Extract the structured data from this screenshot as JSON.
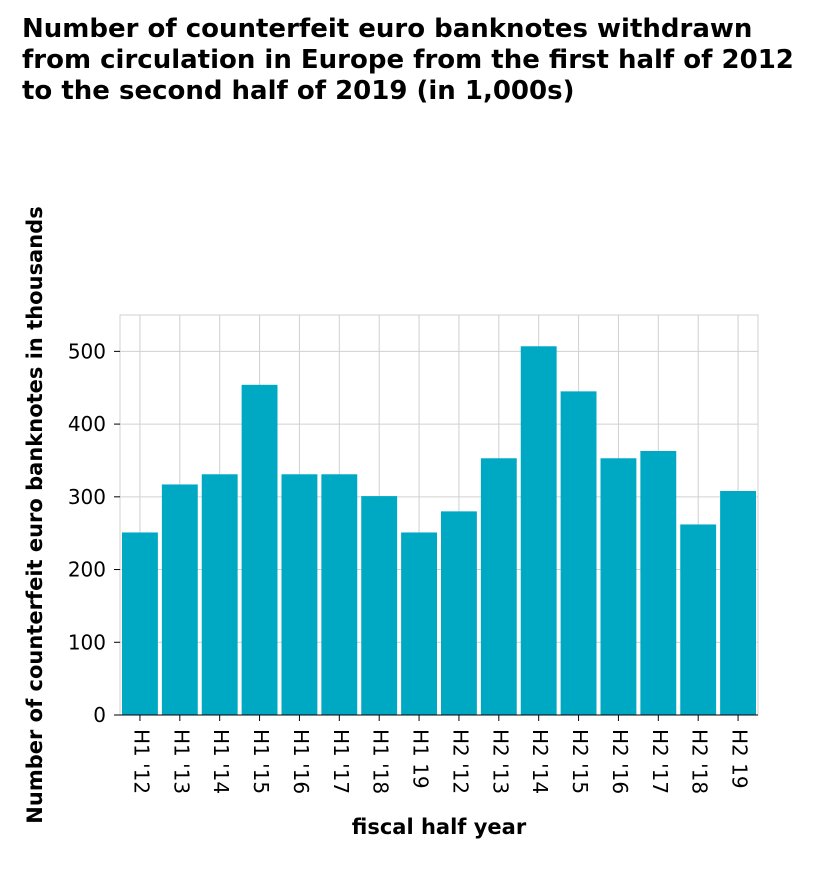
{
  "chart_data": {
    "type": "bar",
    "title": "Number of counterfeit euro banknotes withdrawn from circulation in Europe from the first half of 2012 to the second half of 2019 (in 1,000s)",
    "xlabel": "fiscal half year",
    "ylabel": "Number of counterfeit euro banknotes in thousands",
    "categories": [
      "H1 '12",
      "H1 '13",
      "H1 '14",
      "H1 '15",
      "H1 '16",
      "H1 '17",
      "H1 '18",
      "H1 19",
      "H2 '12",
      "H2 '13",
      "H2 '14",
      "H2 '15",
      "H2 '16",
      "H2 '17",
      "H2 '18",
      "H2 19"
    ],
    "values": [
      251,
      317,
      331,
      454,
      331,
      331,
      301,
      251,
      280,
      353,
      507,
      445,
      353,
      363,
      262,
      308
    ],
    "ylim": [
      0,
      550
    ],
    "yticks": [
      0,
      100,
      200,
      300,
      400,
      500
    ],
    "grid": true,
    "bar_color": "#00a9c3",
    "grid_color": "#d0d0d0"
  }
}
